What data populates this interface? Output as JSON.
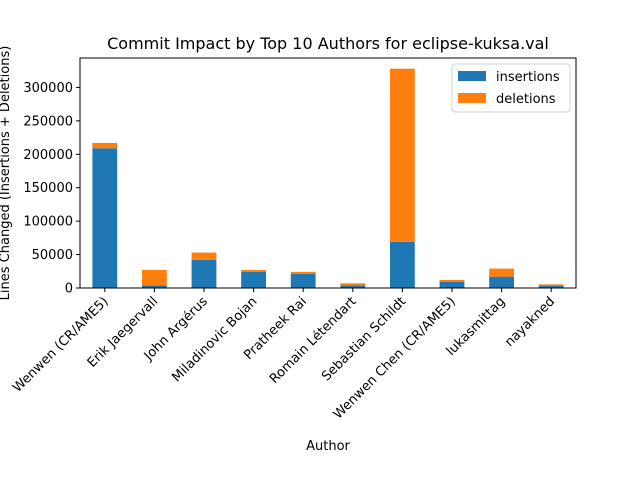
{
  "chart_data": {
    "type": "bar",
    "stacked": true,
    "title": "Commit Impact by Top 10 Authors for eclipse-kuksa.val",
    "xlabel": "Author",
    "ylabel": "Lines Changed (Insertions + Deletions)",
    "categories": [
      "Wenwen (CR/AME5)",
      "Erik Jaegervall",
      "John Argérus",
      "Miladinovic Bojan",
      "Pratheek Rai",
      "Romain Létendart",
      "Sebastian Schildt",
      "Wenwen Chen (CR/AME5)",
      "lukasmittag",
      "nayakned"
    ],
    "series": [
      {
        "name": "insertions",
        "color": "#1f77b4",
        "values": [
          209000,
          4000,
          42000,
          24000,
          21000,
          4000,
          69000,
          9000,
          17000,
          3500
        ]
      },
      {
        "name": "deletions",
        "color": "#ff7f0e",
        "values": [
          8000,
          23000,
          11000,
          3000,
          3000,
          3000,
          259000,
          3000,
          12000,
          2000
        ]
      }
    ],
    "y_ticks": [
      "0",
      "50000",
      "100000",
      "150000",
      "200000",
      "250000",
      "300000"
    ],
    "ylim": [
      0,
      344000
    ],
    "grid": false,
    "legend_position": "top-right"
  }
}
